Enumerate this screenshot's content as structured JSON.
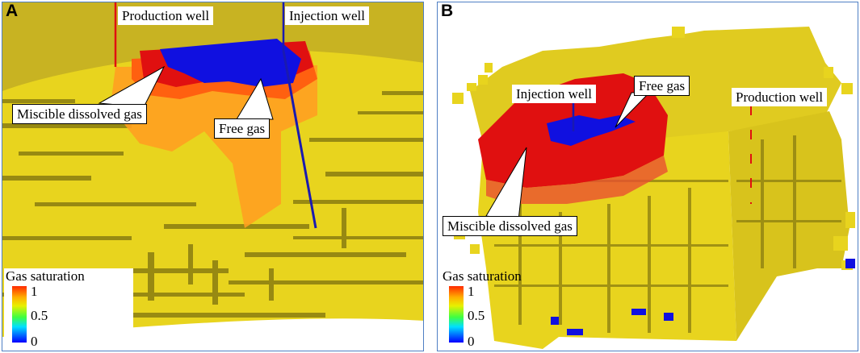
{
  "panels": [
    {
      "letter": "A",
      "labels": {
        "production_well": "Production well",
        "injection_well": "Injection well",
        "miscible_dissolved_gas": "Miscible dissolved gas",
        "free_gas": "Free gas"
      },
      "legend": {
        "title": "Gas saturation",
        "ticks": [
          "1",
          "0.5",
          "0"
        ]
      }
    },
    {
      "letter": "B",
      "labels": {
        "injection_well": "Injection well",
        "free_gas": "Free gas",
        "production_well": "Production well",
        "miscible_dissolved_gas": "Miscible dissolved gas"
      },
      "legend": {
        "title": "Gas saturation",
        "ticks": [
          "1",
          "0.5",
          "0"
        ]
      }
    }
  ],
  "colors": {
    "formation": "#e8d41e",
    "formation_shadow": "#8a7d10",
    "high_saturation": "#e01010",
    "mid_saturation": "#ff9020",
    "free_gas": "#1010e0",
    "well_production": "#e01010",
    "well_injection": "#1a1ab0",
    "frame": "#4f7fc4"
  }
}
